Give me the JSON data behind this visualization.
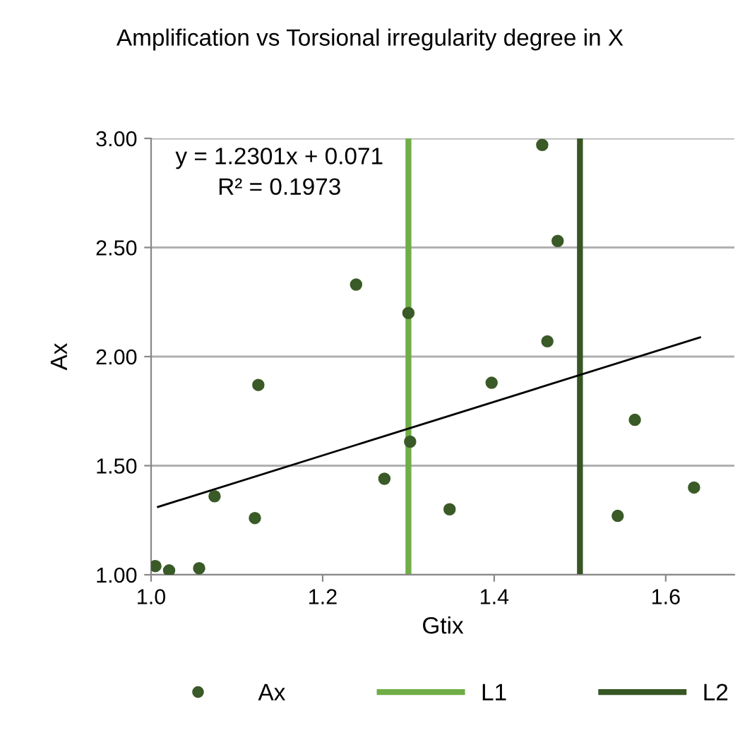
{
  "chart_data": {
    "type": "scatter",
    "title": "Amplification vs Torsional irregularity degree in X",
    "xlabel": "Gtix",
    "ylabel": "Ax",
    "series": [
      {
        "name": "Ax",
        "marker": "circle",
        "color": "#3a5a27",
        "x": [
          1.005,
          1.021,
          1.056,
          1.074,
          1.121,
          1.125,
          1.239,
          1.272,
          1.3,
          1.302,
          1.348,
          1.397,
          1.456,
          1.462,
          1.474,
          1.544,
          1.564,
          1.633
        ],
        "values": [
          1.04,
          1.02,
          1.03,
          1.36,
          1.26,
          1.87,
          2.33,
          1.44,
          2.2,
          1.61,
          1.3,
          1.88,
          2.97,
          2.07,
          2.53,
          1.27,
          1.71,
          1.4
        ]
      },
      {
        "type": "line",
        "marker": "none",
        "color": "#000000",
        "x": [
          1.008,
          1.64
        ],
        "values": [
          1.311,
          2.088
        ]
      }
    ],
    "ref_lines": [
      {
        "axis": "x",
        "value": 1.3,
        "label": "L1",
        "color": "#70ad47"
      },
      {
        "axis": "x",
        "value": 1.5,
        "label": "L2",
        "color": "#375623"
      }
    ],
    "annotations": [
      "y = 1.2301x + 0.071",
      "R² = 0.1973"
    ],
    "xlim": [
      1.0,
      1.68
    ],
    "xticks": [
      {
        "value": 1.0,
        "label": "1.0"
      },
      {
        "value": 1.2,
        "label": "1.2"
      },
      {
        "value": 1.4,
        "label": "1.4"
      },
      {
        "value": 1.6,
        "label": "1.6"
      }
    ],
    "ylim": [
      1.0,
      3.0
    ],
    "yticks": [
      {
        "value": 1.0,
        "label": "1.00"
      },
      {
        "value": 1.5,
        "label": "1.50"
      },
      {
        "value": 2.0,
        "label": "2.00"
      },
      {
        "value": 2.5,
        "label": "2.50"
      },
      {
        "value": 3.0,
        "label": "3.00"
      }
    ],
    "grid": "y",
    "legend": "bottom"
  }
}
